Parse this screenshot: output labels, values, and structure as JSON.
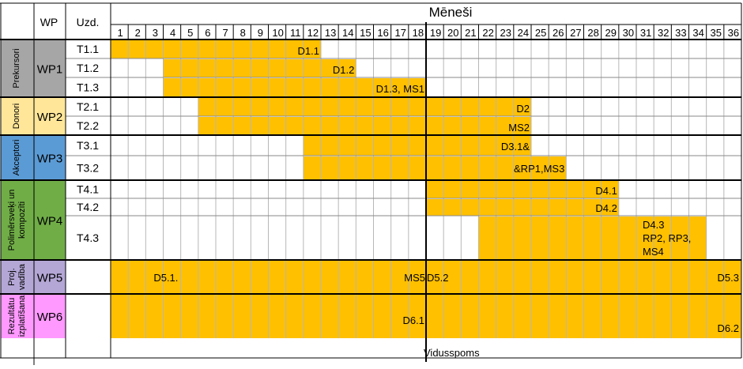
{
  "header": {
    "wp_col": "WP",
    "task_col": "Uzd.",
    "months_title": "Mēneši"
  },
  "months": [
    "1",
    "2",
    "3",
    "4",
    "5",
    "6",
    "7",
    "8",
    "9",
    "10",
    "11",
    "12",
    "13",
    "14",
    "15",
    "16",
    "17",
    "18",
    "19",
    "20",
    "21",
    "22",
    "23",
    "24",
    "25",
    "26",
    "27",
    "28",
    "29",
    "30",
    "31",
    "32",
    "33",
    "34",
    "35",
    "36"
  ],
  "midterm_label": "Vidusspoms",
  "colors": {
    "bar": "#ffc000",
    "grid": "#b7b7b7",
    "border": "#000000"
  },
  "work_packages": [
    {
      "id": "WP1",
      "name": "Prekursori",
      "name_lines": [
        "Prekursori"
      ],
      "color": "#a6a6a6",
      "tasks": [
        {
          "id": "T1.1",
          "start": 1,
          "end": 12,
          "labels": [
            "D1.1"
          ]
        },
        {
          "id": "T1.2",
          "start": 4,
          "end": 14,
          "labels": [
            "D1.2"
          ]
        },
        {
          "id": "T1.3",
          "start": 4,
          "end": 18,
          "labels": [
            "D1.3, MS1"
          ]
        }
      ]
    },
    {
      "id": "WP2",
      "name": "Donori",
      "name_lines": [
        "Donori"
      ],
      "color": "#ffe699",
      "tasks": [
        {
          "id": "T2.1",
          "start": 6,
          "end": 24,
          "labels": [
            "D2"
          ]
        },
        {
          "id": "T2.2",
          "start": 6,
          "end": 24,
          "labels": [
            "MS2"
          ]
        }
      ]
    },
    {
      "id": "WP3",
      "name": "Akceptori",
      "name_lines": [
        "Akceptori"
      ],
      "color": "#5b9bd5",
      "tasks": [
        {
          "id": "T3.1",
          "start": 12,
          "end": 24,
          "labels": [
            "D3.1&"
          ]
        },
        {
          "id": "T3.2",
          "start": 12,
          "end": 26,
          "labels": [
            "&RP1,MS3"
          ]
        }
      ]
    },
    {
      "id": "WP4",
      "name": "Polimērsveķi un kompozīti",
      "name_lines": [
        "Polimērsveķi un",
        "kompozīti"
      ],
      "color": "#70ad47",
      "tasks": [
        {
          "id": "T4.1",
          "start": 19,
          "end": 29,
          "labels": [
            "D4.1"
          ]
        },
        {
          "id": "T4.2",
          "start": 19,
          "end": 29,
          "labels": [
            "D4.2"
          ]
        },
        {
          "id": "T4.3",
          "start": 22,
          "end": 34,
          "labels": [
            "D4.3",
            "RP2, RP3,",
            "MS4"
          ]
        }
      ]
    },
    {
      "id": "WP5",
      "name": "Proj. vadība",
      "name_lines": [
        "Proj.",
        "vadība"
      ],
      "color": "#b4a7d6",
      "tasks": [
        {
          "id": "",
          "start": 1,
          "end": 36,
          "labels": [
            "D5.1.",
            "MS5",
            "D5.2",
            "D5.3"
          ]
        }
      ]
    },
    {
      "id": "WP6",
      "name": "Rezultātu izplatīšana",
      "name_lines": [
        "Rezultātu",
        "izplatīšana"
      ],
      "color": "#ff99ff",
      "tasks": [
        {
          "id": "",
          "start": 1,
          "end": 36,
          "labels": [
            "D6.1",
            "D6.2"
          ]
        }
      ]
    }
  ]
}
